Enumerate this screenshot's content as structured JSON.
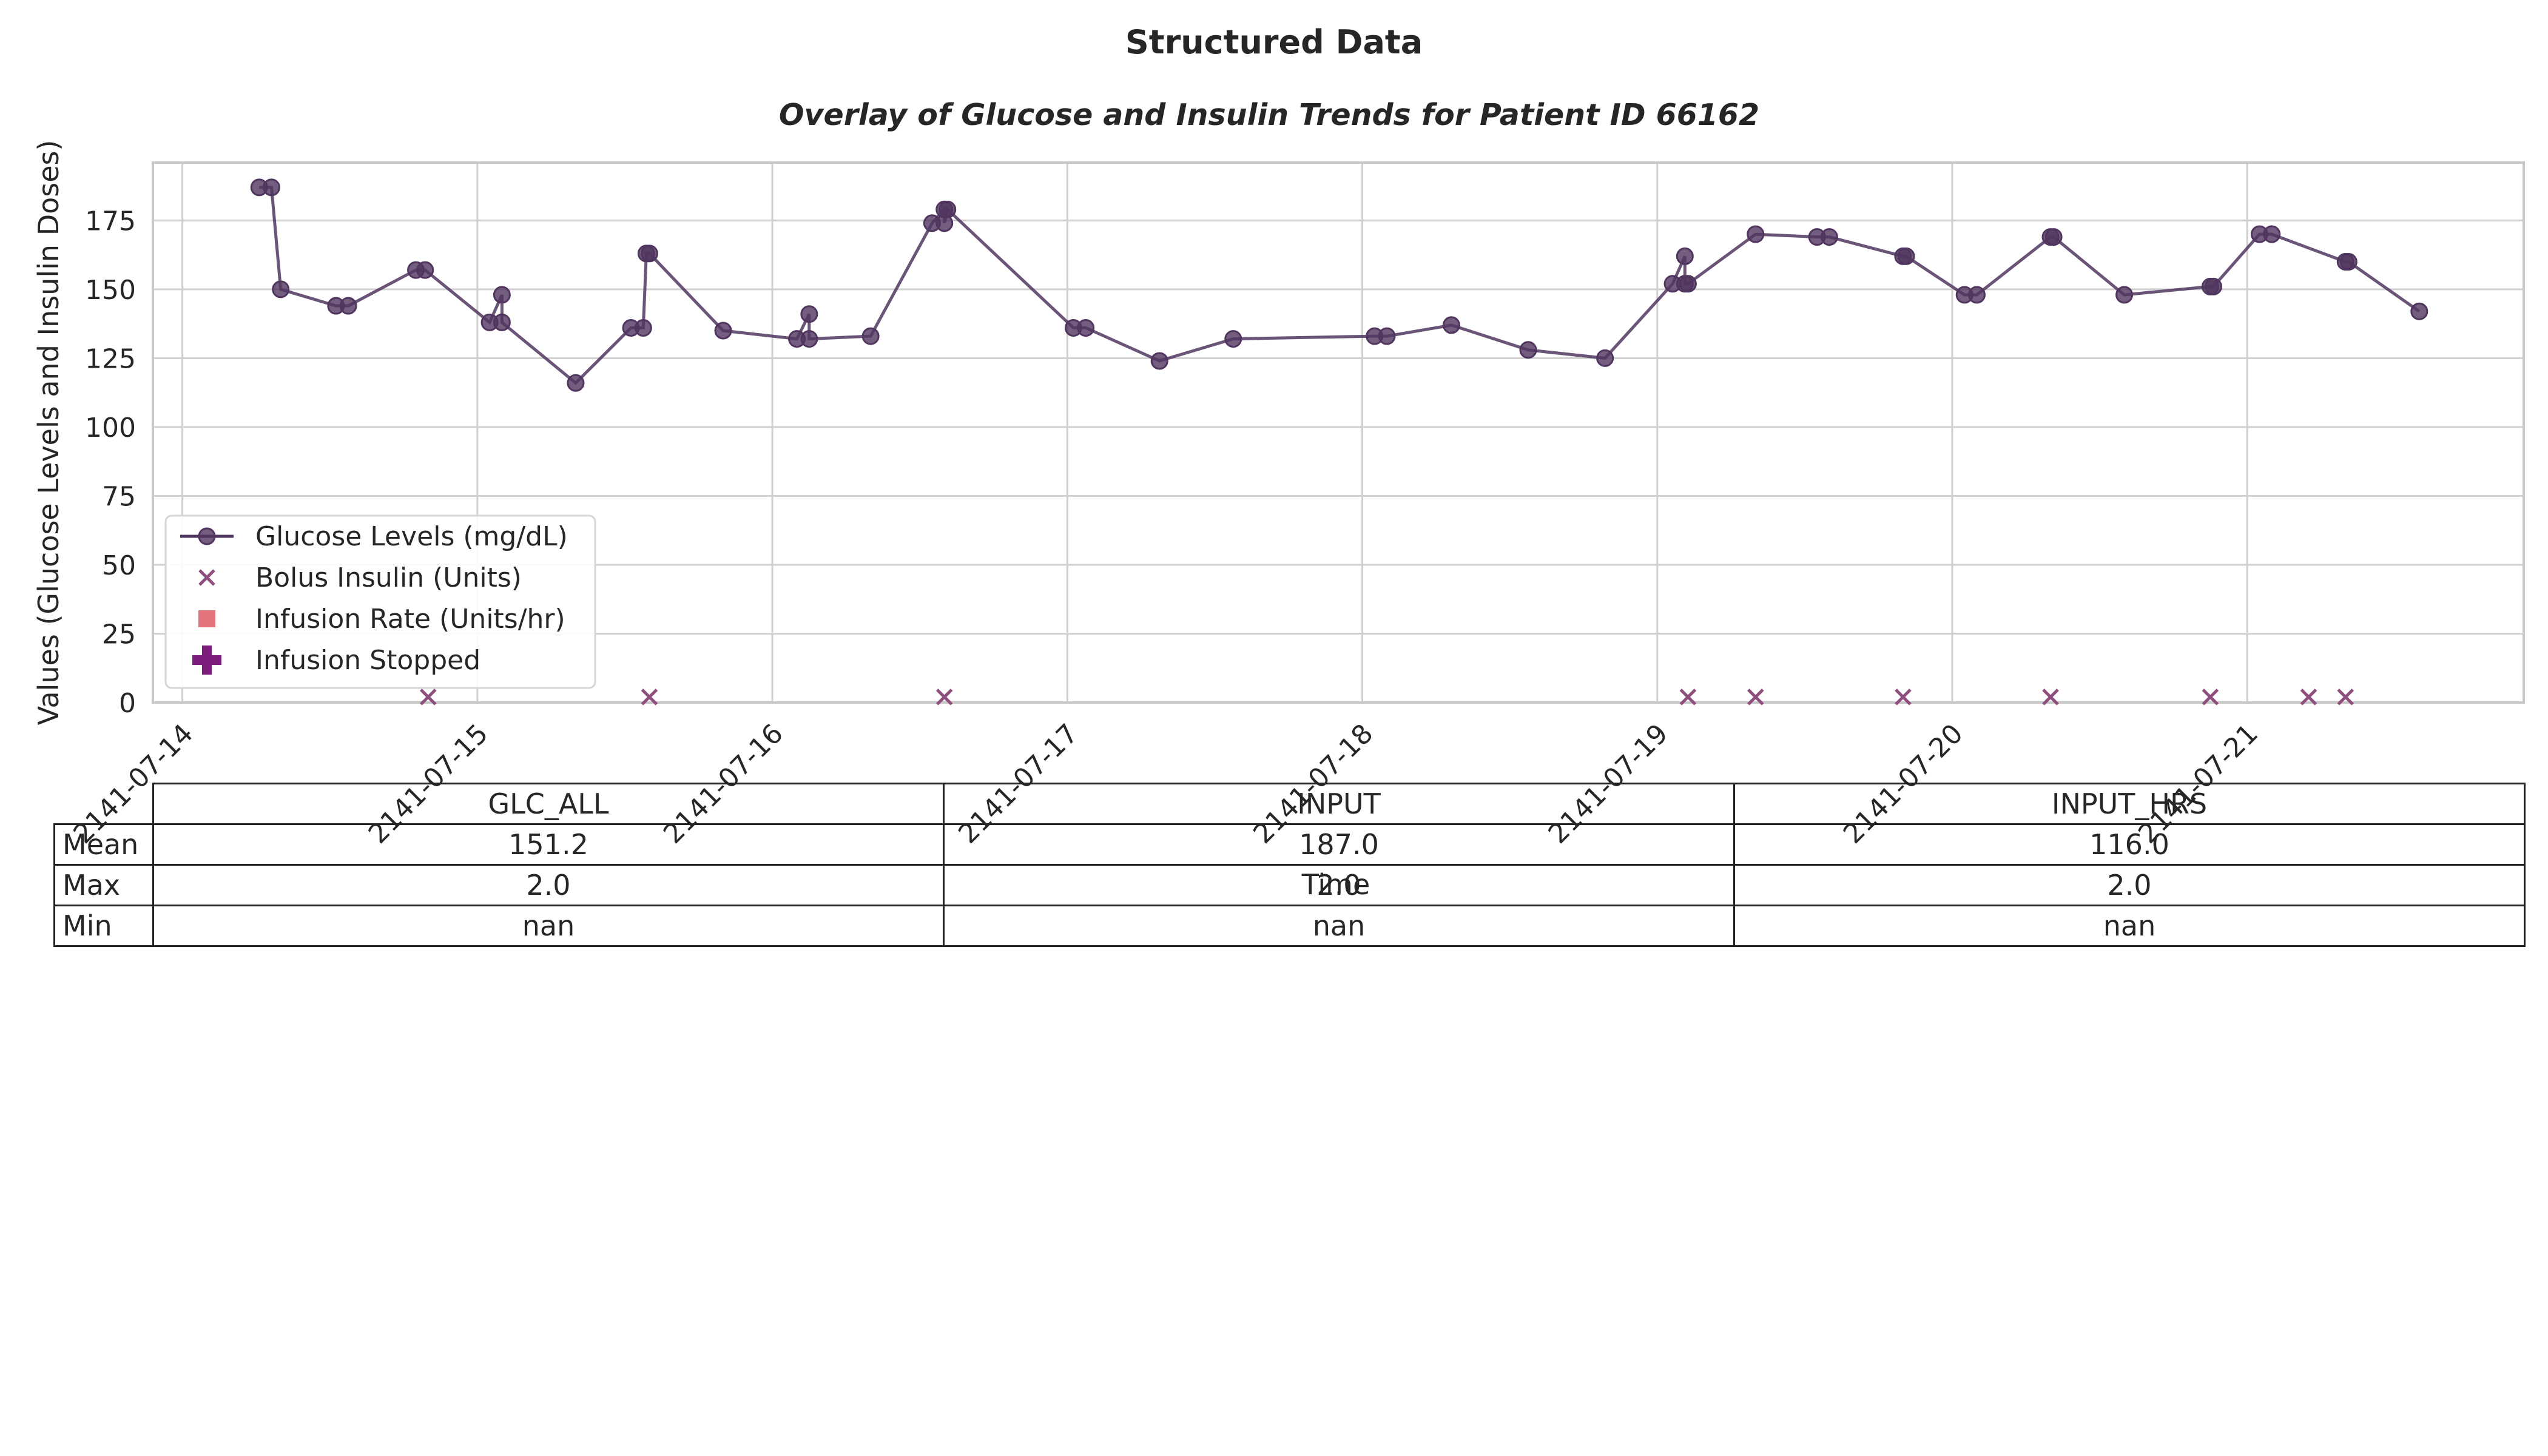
{
  "figure": {
    "title": "Structured Data",
    "colors": {
      "glucose": "#50365f",
      "bolus": "#8e4f7e",
      "infusion_rate": "#e05a66",
      "infusion_stopped": "#7e1d7e",
      "grid": "#d0d0d0",
      "frame": "#c8c8c8"
    }
  },
  "chart_data": {
    "type": "line",
    "title": "Overlay of Glucose and Insulin Trends for Patient ID 66162",
    "xlabel": "Time",
    "ylabel": "Values (Glucose Levels and Insulin Doses)",
    "xlim": [
      "2141-07-13 21:36",
      "2141-07-21 22:30"
    ],
    "ylim": [
      0,
      196
    ],
    "yticks": [
      0,
      25,
      50,
      75,
      100,
      125,
      150,
      175
    ],
    "xticks": [
      "2141-07-14",
      "2141-07-15",
      "2141-07-16",
      "2141-07-17",
      "2141-07-18",
      "2141-07-19",
      "2141-07-20",
      "2141-07-21"
    ],
    "grid": true,
    "legend": {
      "placement": "lower-left",
      "entries": [
        "Glucose Levels (mg/dL)",
        "Bolus Insulin (Units)",
        "Infusion Rate (Units/hr)",
        "Infusion Stopped"
      ]
    },
    "series": [
      {
        "name": "Glucose Levels (mg/dL)",
        "marker": "circle",
        "points": [
          [
            "2141-07-14 06:15",
            187
          ],
          [
            "2141-07-14 07:15",
            187
          ],
          [
            "2141-07-14 08:00",
            150
          ],
          [
            "2141-07-14 12:30",
            144
          ],
          [
            "2141-07-14 13:30",
            144
          ],
          [
            "2141-07-14 19:00",
            157
          ],
          [
            "2141-07-14 19:45",
            157
          ],
          [
            "2141-07-15 01:00",
            138
          ],
          [
            "2141-07-15 02:00",
            148
          ],
          [
            "2141-07-15 02:00",
            138
          ],
          [
            "2141-07-15 08:00",
            116
          ],
          [
            "2141-07-15 12:30",
            136
          ],
          [
            "2141-07-15 13:30",
            136
          ],
          [
            "2141-07-15 13:45",
            163
          ],
          [
            "2141-07-15 14:00",
            163
          ],
          [
            "2141-07-15 20:00",
            135
          ],
          [
            "2141-07-16 02:00",
            132
          ],
          [
            "2141-07-16 03:00",
            141
          ],
          [
            "2141-07-16 03:00",
            132
          ],
          [
            "2141-07-16 08:00",
            133
          ],
          [
            "2141-07-16 13:00",
            174
          ],
          [
            "2141-07-16 14:00",
            179
          ],
          [
            "2141-07-16 14:00",
            174
          ],
          [
            "2141-07-16 14:15",
            179
          ],
          [
            "2141-07-17 00:30",
            136
          ],
          [
            "2141-07-17 01:30",
            136
          ],
          [
            "2141-07-17 07:30",
            124
          ],
          [
            "2141-07-17 13:30",
            132
          ],
          [
            "2141-07-18 01:00",
            133
          ],
          [
            "2141-07-18 02:00",
            133
          ],
          [
            "2141-07-18 07:15",
            137
          ],
          [
            "2141-07-18 13:30",
            128
          ],
          [
            "2141-07-18 19:45",
            125
          ],
          [
            "2141-07-19 01:15",
            152
          ],
          [
            "2141-07-19 02:15",
            162
          ],
          [
            "2141-07-19 02:15",
            152
          ],
          [
            "2141-07-19 02:30",
            152
          ],
          [
            "2141-07-19 08:00",
            170
          ],
          [
            "2141-07-19 13:00",
            169
          ],
          [
            "2141-07-19 14:00",
            169
          ],
          [
            "2141-07-19 20:00",
            162
          ],
          [
            "2141-07-19 20:15",
            162
          ],
          [
            "2141-07-20 01:00",
            148
          ],
          [
            "2141-07-20 02:00",
            148
          ],
          [
            "2141-07-20 08:00",
            169
          ],
          [
            "2141-07-20 08:15",
            169
          ],
          [
            "2141-07-20 14:00",
            148
          ],
          [
            "2141-07-20 21:00",
            151
          ],
          [
            "2141-07-20 21:15",
            151
          ],
          [
            "2141-07-21 01:00",
            170
          ],
          [
            "2141-07-21 02:00",
            170
          ],
          [
            "2141-07-21 08:00",
            160
          ],
          [
            "2141-07-21 08:15",
            160
          ],
          [
            "2141-07-21 14:00",
            142
          ]
        ]
      },
      {
        "name": "Bolus Insulin (Units)",
        "marker": "x",
        "points": [
          [
            "2141-07-14 20:00",
            2
          ],
          [
            "2141-07-15 14:00",
            2
          ],
          [
            "2141-07-16 14:00",
            2
          ],
          [
            "2141-07-19 02:30",
            2
          ],
          [
            "2141-07-19 08:00",
            2
          ],
          [
            "2141-07-19 20:00",
            2
          ],
          [
            "2141-07-20 08:00",
            2
          ],
          [
            "2141-07-20 21:00",
            2
          ],
          [
            "2141-07-21 05:00",
            2
          ],
          [
            "2141-07-21 08:00",
            2
          ]
        ]
      },
      {
        "name": "Infusion Rate (Units/hr)",
        "marker": "square",
        "points": []
      },
      {
        "name": "Infusion Stopped",
        "marker": "plus",
        "points": []
      }
    ]
  },
  "table": {
    "columns": [
      "GLC_ALL",
      "INPUT",
      "INPUT_HRS"
    ],
    "rows": [
      {
        "label": "Mean",
        "values": [
          "151.2",
          "187.0",
          "116.0"
        ]
      },
      {
        "label": "Max",
        "values": [
          "2.0",
          "2.0",
          "2.0"
        ]
      },
      {
        "label": "Min",
        "values": [
          "nan",
          "nan",
          "nan"
        ]
      }
    ]
  }
}
